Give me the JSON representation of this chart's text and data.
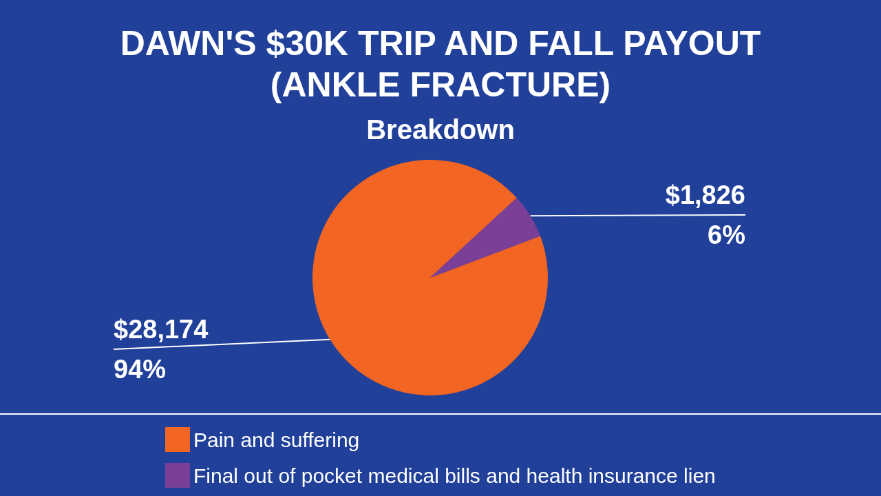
{
  "chart_data": {
    "type": "pie",
    "title": "DAWN'S $30K TRIP AND FALL PAYOUT\n(ANKLE FRACTURE)",
    "subtitle": "Breakdown",
    "categories": [
      "Pain and suffering",
      "Final out of pocket medical bills and health insurance lien"
    ],
    "values": [
      28174,
      1826
    ],
    "colors": [
      "#f26522",
      "#7b3f98"
    ],
    "value_labels": [
      "$28,174\n94%",
      "$1,826\n6%"
    ],
    "legend": "bottom left"
  }
}
